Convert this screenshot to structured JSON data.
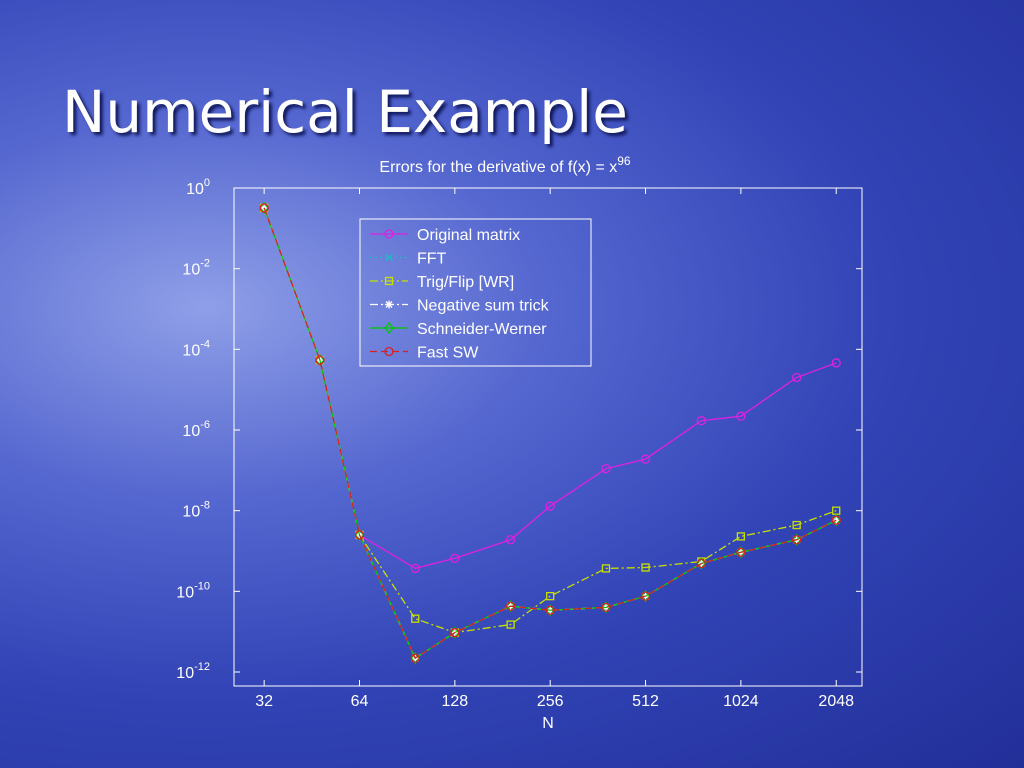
{
  "slide_title": "Numerical Example",
  "chart_data": {
    "type": "line",
    "title": "Errors for the derivative of f(x) = x",
    "title_superscript": "96",
    "x_label": "N",
    "xscale": "log",
    "yscale": "log",
    "x": [
      32,
      48,
      64,
      96,
      128,
      192,
      256,
      384,
      512,
      768,
      1024,
      1536,
      2048
    ],
    "xlim": [
      25.7,
      2470
    ],
    "xticks": [
      32,
      64,
      128,
      256,
      512,
      1024,
      2048
    ],
    "ylim": [
      4.5e-13,
      1
    ],
    "yticks": [
      {
        "value": 1,
        "label": "10",
        "exponent": "0"
      },
      {
        "value": 0.01,
        "label": "10",
        "exponent": "-2"
      },
      {
        "value": 0.0001,
        "label": "10",
        "exponent": "-4"
      },
      {
        "value": 1e-06,
        "label": "10",
        "exponent": "-6"
      },
      {
        "value": 1e-08,
        "label": "10",
        "exponent": "-8"
      },
      {
        "value": 1e-10,
        "label": "10",
        "exponent": "-10"
      },
      {
        "value": 1e-12,
        "label": "10",
        "exponent": "-12"
      }
    ],
    "legend": "upper center",
    "series": [
      {
        "name": "Original matrix",
        "color": "#e020e0",
        "marker": "circle",
        "line_style": "solid",
        "values": [
          0.32,
          5.4e-05,
          2.5e-09,
          3.7e-10,
          6.6e-10,
          1.9e-09,
          1.3e-08,
          1.1e-07,
          1.9e-07,
          1.7e-06,
          2.2e-06,
          2e-05,
          4.6e-05
        ]
      },
      {
        "name": "FFT",
        "color": "#20b8c8",
        "marker": "x",
        "line_style": "dotted",
        "values": [
          0.32,
          5.4e-05,
          2.5e-09,
          2.2e-12,
          9.5e-12,
          4.3e-11,
          3.4e-11,
          4e-11,
          7.6e-11,
          4.9e-10,
          9.3e-10,
          1.9e-09,
          5.8e-09
        ]
      },
      {
        "name": "Trig/Flip [WR]",
        "color": "#c8e000",
        "marker": "square",
        "line_style": "dashdot",
        "values": [
          0.32,
          5.4e-05,
          2.5e-09,
          2.1e-11,
          9.5e-12,
          1.5e-11,
          7.6e-11,
          3.7e-10,
          3.9e-10,
          5.5e-10,
          2.3e-09,
          4.4e-09,
          1e-08
        ]
      },
      {
        "name": "Negative sum trick",
        "color": "#ffffff",
        "marker": "star",
        "line_style": "dashdot",
        "values": [
          0.32,
          5.4e-05,
          2.5e-09,
          2.2e-12,
          9.5e-12,
          4.3e-11,
          3.4e-11,
          4e-11,
          7.6e-11,
          4.9e-10,
          9.3e-10,
          1.9e-09,
          5.8e-09
        ]
      },
      {
        "name": "Schneider-Werner",
        "color": "#00c800",
        "marker": "diamond",
        "line_style": "solid",
        "values": [
          0.32,
          5.4e-05,
          2.5e-09,
          2.2e-12,
          9.5e-12,
          4.3e-11,
          3.4e-11,
          4e-11,
          7.6e-11,
          4.9e-10,
          9.3e-10,
          1.9e-09,
          5.8e-09
        ]
      },
      {
        "name": "Fast SW",
        "color": "#d82020",
        "marker": "circle",
        "line_style": "dashed",
        "values": [
          0.32,
          5.4e-05,
          2.5e-09,
          2.2e-12,
          9.5e-12,
          4.3e-11,
          3.4e-11,
          4e-11,
          7.6e-11,
          4.9e-10,
          9.3e-10,
          1.9e-09,
          5.8e-09
        ]
      }
    ]
  }
}
